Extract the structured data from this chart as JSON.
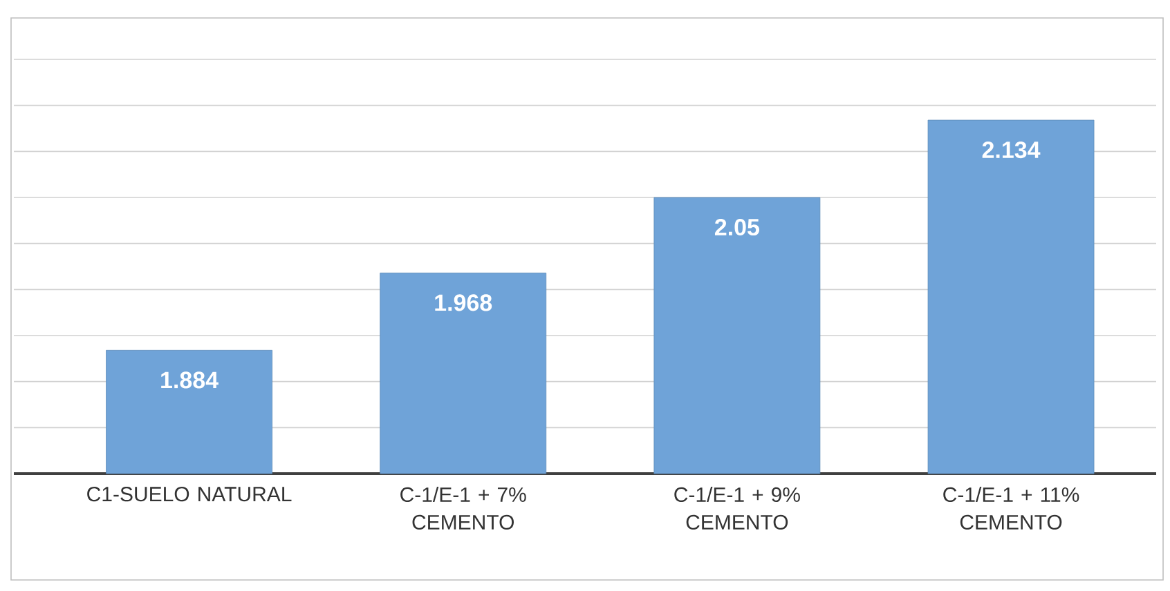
{
  "chart_data": {
    "type": "bar",
    "categories": [
      "C1-SUELO NATURAL",
      "C-1/E-1 + 7% CEMENTO",
      "C-1/E-1 + 9% CEMENTO",
      "C-1/E-1 + 11% CEMENTO"
    ],
    "values": [
      1.884,
      1.968,
      2.05,
      2.134
    ],
    "color": "#6fa3d8",
    "ylim": [
      1.75,
      2.2
    ],
    "yticks": [
      {
        "value": 1.75,
        "label": null
      },
      {
        "value": 1.8,
        "label": null
      },
      {
        "value": 1.85,
        "label": null
      },
      {
        "value": 1.9,
        "label": null
      },
      {
        "value": 1.95,
        "label": null
      },
      {
        "value": 2.0,
        "label": null
      },
      {
        "value": 2.05,
        "label": null
      },
      {
        "value": 2.1,
        "label": null
      },
      {
        "value": 2.15,
        "label": null
      },
      {
        "value": 2.2,
        "label": null
      }
    ],
    "grid": "y",
    "tick_labels": "x",
    "data_labels": true
  }
}
